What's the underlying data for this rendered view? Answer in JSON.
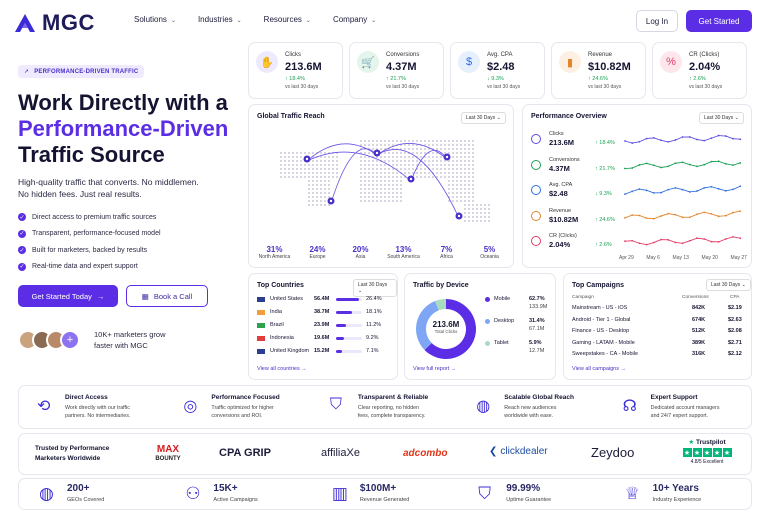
{
  "nav": {
    "brand": "MGC",
    "menu": [
      "Solutions",
      "Industries",
      "Resources",
      "Company"
    ],
    "login": "Log In",
    "cta": "Get Started"
  },
  "hero": {
    "badge": "PERFORMANCE-DRIVEN TRAFFIC",
    "title_1": "Work Directly with a",
    "title_2": "Performance-Driven",
    "title_3": "Traffic Source",
    "subtitle_1": "High-quality traffic that converts. No middlemen.",
    "subtitle_2": "No hidden fees. Just real results.",
    "checks": [
      "Direct access to premium traffic sources",
      "Transparent, performance-focused model",
      "Built for marketers, backed by results",
      "Real-time data and expert support"
    ],
    "primary_btn": "Get Started Today",
    "secondary_btn": "Book a Call",
    "social_1": "10K+ marketers grow",
    "social_2": "faster with MGC"
  },
  "kpis": [
    {
      "label": "Clicks",
      "value": "213.6M",
      "change": "↑ 18.4%",
      "sub": "vs last 30 days",
      "color": "#6b5bd6",
      "bg": "#eeeafd",
      "icon": "cursor-icon",
      "glyph": "✋"
    },
    {
      "label": "Conversions",
      "value": "4.37M",
      "change": "↑ 21.7%",
      "sub": "vs last 30 days",
      "color": "#1aa053",
      "bg": "#e4f6ec",
      "icon": "cart-icon",
      "glyph": "🛒"
    },
    {
      "label": "Avg. CPA",
      "value": "$2.48",
      "change": "↓ 9.3%",
      "sub": "vs last 30 days",
      "color": "#2e6fe0",
      "bg": "#e6effc",
      "icon": "dollar-icon",
      "glyph": "$"
    },
    {
      "label": "Revenue",
      "value": "$10.82M",
      "change": "↑ 24.6%",
      "sub": "vs last 30 days",
      "color": "#e2862b",
      "bg": "#fdf0e2",
      "icon": "chart-icon",
      "glyph": "▮"
    },
    {
      "label": "CR (Clicks)",
      "value": "2.04%",
      "change": "↑ 2.6%",
      "sub": "vs last 30 days",
      "color": "#e23c68",
      "bg": "#fde6ec",
      "icon": "percent-icon",
      "glyph": "%"
    }
  ],
  "reach": {
    "title": "Global Traffic Reach",
    "range": "Last 30 Days ⌄",
    "regions": [
      {
        "pct": "31%",
        "name": "North America"
      },
      {
        "pct": "24%",
        "name": "Europe"
      },
      {
        "pct": "20%",
        "name": "Asia"
      },
      {
        "pct": "13%",
        "name": "South America"
      },
      {
        "pct": "7%",
        "name": "Africa"
      },
      {
        "pct": "5%",
        "name": "Oceania"
      }
    ]
  },
  "overview": {
    "title": "Performance Overview",
    "range": "Last 30 Days ⌄",
    "rows": [
      {
        "label": "Clicks",
        "value": "213.6M",
        "change": "↑ 18.4%",
        "color": "#5b4ee0"
      },
      {
        "label": "Conversions",
        "value": "4.37M",
        "change": "↑ 21.7%",
        "color": "#1aa053"
      },
      {
        "label": "Avg. CPA",
        "value": "$2.48",
        "change": "↓ 9.3%",
        "color": "#2e6fe0"
      },
      {
        "label": "Revenue",
        "value": "$10.82M",
        "change": "↑ 24.6%",
        "color": "#e2862b"
      },
      {
        "label": "CR (Clicks)",
        "value": "2.04%",
        "change": "↑ 2.6%",
        "color": "#e23c68"
      }
    ],
    "dates": [
      "Apr 29",
      "May 6",
      "May 13",
      "May 20",
      "May 27"
    ]
  },
  "countries": {
    "title": "Top Countries",
    "range": "Last 30 Days ⌄",
    "link": "View all countries →",
    "rows": [
      {
        "name": "United States",
        "value": "56.4M",
        "pct": "26.4%",
        "fill": 0.264
      },
      {
        "name": "India",
        "value": "38.7M",
        "pct": "18.1%",
        "fill": 0.181
      },
      {
        "name": "Brazil",
        "value": "23.9M",
        "pct": "11.2%",
        "fill": 0.112
      },
      {
        "name": "Indonesia",
        "value": "19.6M",
        "pct": "9.2%",
        "fill": 0.092
      },
      {
        "name": "United Kingdom",
        "value": "15.2M",
        "pct": "7.1%",
        "fill": 0.071
      }
    ]
  },
  "device": {
    "title": "Traffic by Device",
    "total": "213.6M",
    "total_label": "Total Clicks",
    "link": "View full report →",
    "rows": [
      {
        "name": "Mobile",
        "pct": "62.7%",
        "value": "133.9M",
        "share": 0.627,
        "color": "#5b2ee6"
      },
      {
        "name": "Desktop",
        "pct": "31.4%",
        "value": "67.1M",
        "share": 0.314,
        "color": "#7ea6f5"
      },
      {
        "name": "Tablet",
        "pct": "5.9%",
        "value": "12.7M",
        "share": 0.059,
        "color": "#a8dcc0"
      }
    ]
  },
  "campaigns": {
    "title": "Top Campaigns",
    "range": "Last 30 Days ⌄",
    "headers": [
      "Campaign",
      "Conversions",
      "CPA"
    ],
    "link": "View all campaigns →",
    "rows": [
      {
        "name": "Mainstream - US - iOS",
        "conv": "842K",
        "cpa": "$2.19"
      },
      {
        "name": "Android - Tier 1 - Global",
        "conv": "674K",
        "cpa": "$2.63"
      },
      {
        "name": "Finance - US - Desktop",
        "conv": "512K",
        "cpa": "$2.08"
      },
      {
        "name": "Gaming - LATAM - Mobile",
        "conv": "389K",
        "cpa": "$2.71"
      },
      {
        "name": "Sweepstakes - CA - Mobile",
        "conv": "316K",
        "cpa": "$2.12"
      }
    ]
  },
  "features": [
    {
      "title": "Direct Access",
      "d1": "Work directly with our traffic",
      "d2": "partners. No intermediaries.",
      "icon": "network-icon"
    },
    {
      "title": "Performance Focused",
      "d1": "Traffic optimized for higher",
      "d2": "conversions and ROI.",
      "icon": "target-icon"
    },
    {
      "title": "Transparent & Reliable",
      "d1": "Clear reporting, no hidden",
      "d2": "fees, complete transparency.",
      "icon": "shield-icon"
    },
    {
      "title": "Scalable Global Reach",
      "d1": "Reach new audiences",
      "d2": "worldwide with ease.",
      "icon": "globe-icon"
    },
    {
      "title": "Expert Support",
      "d1": "Dedicated account managers",
      "d2": "and 24/7 expert support.",
      "icon": "headset-icon"
    }
  ],
  "trusted": {
    "label_1": "Trusted by Performance",
    "label_2": "Marketers Worldwide",
    "brands": [
      {
        "name": "MAX BOUNTY"
      },
      {
        "name": "CPA GRIP"
      },
      {
        "name": "affiliaXe"
      },
      {
        "name": "adcombo"
      },
      {
        "name": "clickdealer"
      },
      {
        "name": "Zeydoo"
      }
    ],
    "trustpilot": "Trustpilot",
    "rating": "4.8/5 Excellent"
  },
  "stats": [
    {
      "value": "200+",
      "label": "GEOs Covered",
      "icon": "globe-icon"
    },
    {
      "value": "15K+",
      "label": "Active Campaigns",
      "icon": "users-icon"
    },
    {
      "value": "$100M+",
      "label": "Revenue Generated",
      "icon": "bar-chart-icon"
    },
    {
      "value": "99.99%",
      "label": "Uptime Guarantee",
      "icon": "shield-check-icon"
    },
    {
      "value": "10+ Years",
      "label": "Industry Experience",
      "icon": "trophy-icon"
    }
  ]
}
